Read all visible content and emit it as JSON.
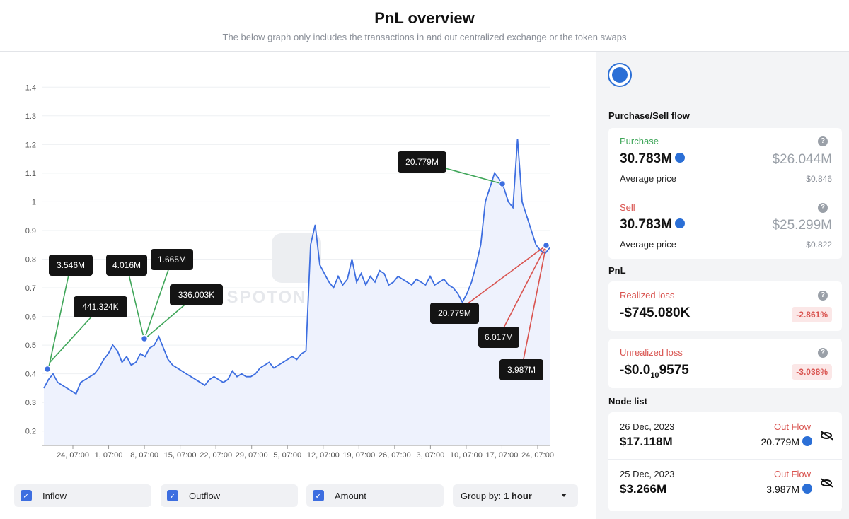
{
  "header": {
    "title": "PnL overview",
    "subtitle": "The below graph only includes the transactions in and out centralized exchange or the token swaps"
  },
  "watermark": "SPOTONCHAIN",
  "chart_data": {
    "type": "line",
    "title": "",
    "xlabel": "",
    "ylabel": "",
    "ylim": [
      0.15,
      1.45
    ],
    "yticks": [
      "0.2",
      "0.3",
      "0.4",
      "0.5",
      "0.6",
      "0.7",
      "0.8",
      "0.9",
      "1",
      "1.1",
      "1.2",
      "1.3",
      "1.4"
    ],
    "xticks": [
      "24, 07:00",
      "1, 07:00",
      "8, 07:00",
      "15, 07:00",
      "22, 07:00",
      "29, 07:00",
      "5, 07:00",
      "12, 07:00",
      "19, 07:00",
      "26, 07:00",
      "3, 07:00",
      "10, 07:00",
      "17, 07:00",
      "24, 07:00"
    ],
    "series": [
      {
        "values": [
          0.35,
          0.38,
          0.4,
          0.37,
          0.36,
          0.35,
          0.34,
          0.33,
          0.37,
          0.38,
          0.39,
          0.4,
          0.42,
          0.45,
          0.47,
          0.5,
          0.48,
          0.44,
          0.46,
          0.43,
          0.44,
          0.47,
          0.46,
          0.49,
          0.5,
          0.53,
          0.49,
          0.45,
          0.43,
          0.42,
          0.41,
          0.4,
          0.39,
          0.38,
          0.37,
          0.36,
          0.38,
          0.39,
          0.38,
          0.37,
          0.38,
          0.41,
          0.39,
          0.4,
          0.39,
          0.39,
          0.4,
          0.42,
          0.43,
          0.44,
          0.42,
          0.43,
          0.44,
          0.45,
          0.46,
          0.45,
          0.47,
          0.48,
          0.85,
          0.92,
          0.78,
          0.75,
          0.72,
          0.7,
          0.74,
          0.71,
          0.73,
          0.8,
          0.72,
          0.75,
          0.71,
          0.74,
          0.72,
          0.76,
          0.75,
          0.71,
          0.72,
          0.74,
          0.73,
          0.72,
          0.71,
          0.73,
          0.72,
          0.71,
          0.74,
          0.71,
          0.72,
          0.73,
          0.71,
          0.7,
          0.68,
          0.65,
          0.68,
          0.72,
          0.78,
          0.85,
          1.0,
          1.05,
          1.1,
          1.08,
          1.05,
          1.0,
          0.98,
          1.22,
          1.0,
          0.95,
          0.9,
          0.85,
          0.83,
          0.82,
          0.84
        ]
      }
    ],
    "annotations": [
      {
        "label": "3.546M",
        "color": "#3fa659"
      },
      {
        "label": "441.324K",
        "color": "#3fa659"
      },
      {
        "label": "4.016M",
        "color": "#3fa659"
      },
      {
        "label": "1.665M",
        "color": "#3fa659"
      },
      {
        "label": "336.003K",
        "color": "#3fa659"
      },
      {
        "label": "20.779M",
        "color": "#3fa659"
      },
      {
        "label": "20.779M",
        "color": "#d9534f"
      },
      {
        "label": "6.017M",
        "color": "#d9534f"
      },
      {
        "label": "3.987M",
        "color": "#d9534f"
      }
    ],
    "grid": true,
    "line_color": "#3d6ee0"
  },
  "filters": {
    "inflow": "Inflow",
    "outflow": "Outflow",
    "amount": "Amount",
    "groupby_label": "Group by:",
    "groupby_value": "1 hour",
    "check": "✓"
  },
  "side": {
    "flow_title": "Purchase/Sell flow",
    "purchase": {
      "label": "Purchase",
      "amount": "30.783M",
      "usd": "$26.044M",
      "avg_label": "Average price",
      "avg": "$0.846"
    },
    "sell": {
      "label": "Sell",
      "amount": "30.783M",
      "usd": "$25.299M",
      "avg_label": "Average price",
      "avg": "$0.822"
    },
    "pnl_title": "PnL",
    "realized": {
      "label": "Realized loss",
      "value": "-$745.080K",
      "pct": "-2.861%"
    },
    "unrealized": {
      "label": "Unrealized loss",
      "value_prefix": "-$0.0",
      "value_sub": "10",
      "value_suffix": "9575",
      "pct": "-3.038%"
    },
    "help": "?",
    "node_title": "Node list",
    "nodes": [
      {
        "date": "26 Dec, 2023",
        "amount": "$17.118M",
        "flow": "Out Flow",
        "tokens": "20.779M"
      },
      {
        "date": "25 Dec, 2023",
        "amount": "$3.266M",
        "flow": "Out Flow",
        "tokens": "3.987M"
      }
    ]
  }
}
